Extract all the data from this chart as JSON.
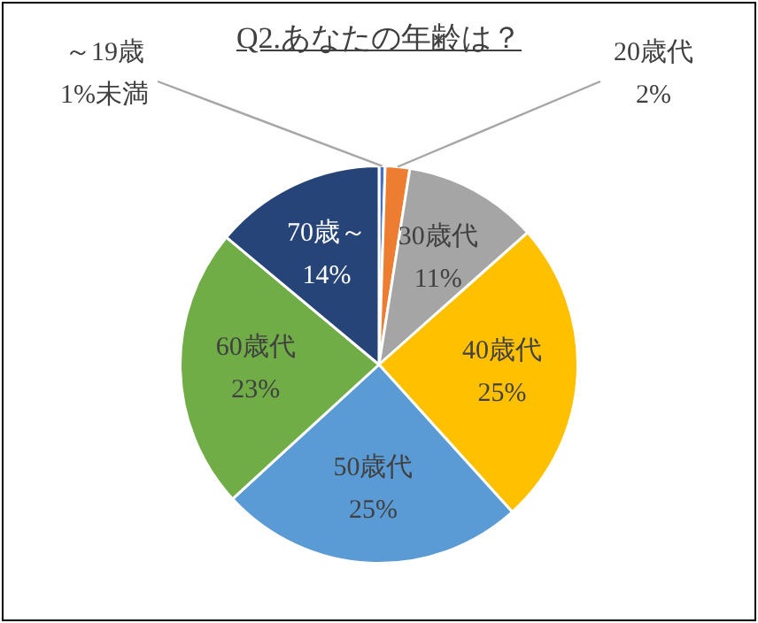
{
  "chart_data": {
    "type": "pie",
    "title": "Q2.あなたの年齢は？",
    "categories": [
      "～19歳",
      "20歳代",
      "30歳代",
      "40歳代",
      "50歳代",
      "60歳代",
      "70歳～"
    ],
    "values": [
      0.5,
      2,
      11,
      25,
      25,
      23,
      14
    ],
    "value_labels": [
      "1%未満",
      "2%",
      "11%",
      "25%",
      "25%",
      "23%",
      "14%"
    ],
    "colors": [
      "#4472c4",
      "#ed7d31",
      "#a5a5a5",
      "#ffc000",
      "#5b9bd5",
      "#70ad47",
      "#264478"
    ],
    "legend": false
  }
}
